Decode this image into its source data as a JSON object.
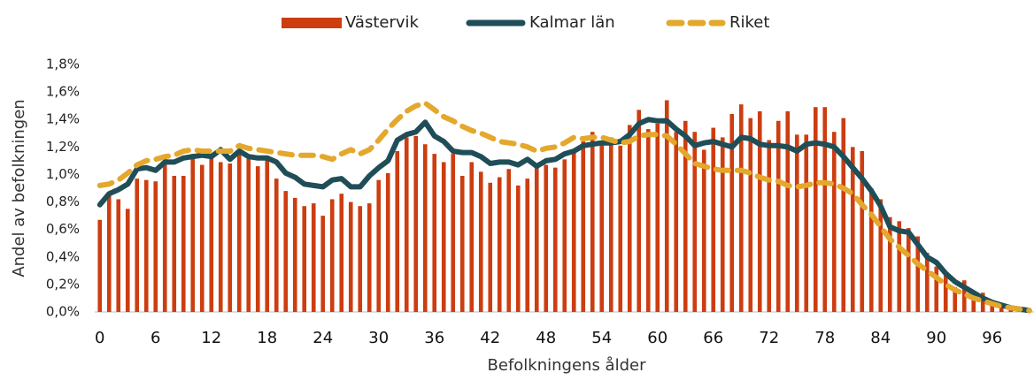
{
  "chart_data": {
    "type": "bar",
    "x_label": "Befolkningens ålder",
    "y_label": "Andel av befolkningen",
    "legend": "top",
    "grid": false,
    "categories": [
      0,
      null,
      null,
      null,
      null,
      null,
      6,
      null,
      null,
      null,
      null,
      null,
      12,
      null,
      null,
      null,
      null,
      null,
      18,
      null,
      null,
      null,
      null,
      null,
      24,
      null,
      null,
      null,
      null,
      null,
      30,
      null,
      null,
      null,
      null,
      null,
      36,
      null,
      null,
      null,
      null,
      null,
      42,
      null,
      null,
      null,
      null,
      null,
      48,
      null,
      null,
      null,
      null,
      null,
      54,
      null,
      null,
      null,
      null,
      null,
      60,
      null,
      null,
      null,
      null,
      null,
      66,
      null,
      null,
      null,
      null,
      null,
      72,
      null,
      null,
      null,
      null,
      null,
      78,
      null,
      null,
      null,
      null,
      null,
      84,
      null,
      null,
      null,
      null,
      null,
      90,
      null,
      null,
      null,
      null,
      null,
      96,
      null,
      null,
      null,
      null
    ],
    "ylim": [
      0,
      1.8
    ],
    "yticks": [
      {
        "value": 0,
        "label": "0,0%"
      },
      {
        "value": 0.2,
        "label": "0,2%"
      },
      {
        "value": 0.4,
        "label": "0,4%"
      },
      {
        "value": 0.6,
        "label": "0,6%"
      },
      {
        "value": 0.8,
        "label": "0,8%"
      },
      {
        "value": 1.0,
        "label": "1,0%"
      },
      {
        "value": 1.2,
        "label": "1,2%"
      },
      {
        "value": 1.4,
        "label": "1,4%"
      },
      {
        "value": 1.6,
        "label": "1,6%"
      },
      {
        "value": 1.8,
        "label": "1,8%"
      }
    ],
    "series": [
      {
        "name": "Västervik",
        "type": "bar",
        "color": "#cc3d10",
        "values": [
          0.67,
          0.85,
          0.82,
          0.75,
          0.97,
          0.96,
          0.95,
          1.14,
          0.99,
          0.99,
          1.15,
          1.07,
          1.12,
          1.09,
          1.08,
          1.17,
          1.12,
          1.06,
          1.12,
          0.97,
          0.88,
          0.83,
          0.77,
          0.79,
          0.7,
          0.82,
          0.86,
          0.8,
          0.77,
          0.79,
          0.96,
          1.01,
          1.17,
          1.27,
          1.28,
          1.22,
          1.15,
          1.09,
          1.15,
          0.99,
          1.09,
          1.02,
          0.94,
          0.98,
          1.04,
          0.92,
          0.97,
          1.08,
          1.07,
          1.05,
          1.11,
          1.18,
          1.24,
          1.31,
          1.22,
          1.27,
          1.21,
          1.36,
          1.47,
          1.33,
          1.37,
          1.54,
          1.31,
          1.39,
          1.31,
          1.18,
          1.34,
          1.27,
          1.44,
          1.51,
          1.41,
          1.46,
          1.25,
          1.39,
          1.46,
          1.29,
          1.29,
          1.49,
          1.49,
          1.31,
          1.41,
          1.2,
          1.17,
          0.9,
          0.82,
          0.69,
          0.66,
          0.61,
          0.55,
          0.43,
          0.33,
          0.27,
          0.18,
          0.23,
          0.12,
          0.14,
          0.05,
          0.05,
          0.03,
          0.02,
          0.01
        ]
      },
      {
        "name": "Kalmar län",
        "type": "line",
        "color": "#1f4e58",
        "values": [
          0.78,
          0.86,
          0.89,
          0.93,
          1.04,
          1.05,
          1.03,
          1.09,
          1.09,
          1.12,
          1.13,
          1.14,
          1.13,
          1.18,
          1.11,
          1.17,
          1.13,
          1.12,
          1.12,
          1.09,
          1.01,
          0.98,
          0.93,
          0.92,
          0.91,
          0.96,
          0.97,
          0.91,
          0.91,
          0.99,
          1.05,
          1.1,
          1.25,
          1.29,
          1.31,
          1.38,
          1.28,
          1.24,
          1.17,
          1.16,
          1.16,
          1.13,
          1.08,
          1.09,
          1.09,
          1.07,
          1.11,
          1.06,
          1.1,
          1.11,
          1.15,
          1.17,
          1.21,
          1.22,
          1.23,
          1.23,
          1.24,
          1.29,
          1.37,
          1.4,
          1.39,
          1.39,
          1.33,
          1.28,
          1.21,
          1.23,
          1.24,
          1.22,
          1.2,
          1.27,
          1.26,
          1.22,
          1.21,
          1.21,
          1.2,
          1.17,
          1.22,
          1.23,
          1.22,
          1.2,
          1.13,
          1.05,
          0.97,
          0.88,
          0.77,
          0.62,
          0.59,
          0.58,
          0.49,
          0.4,
          0.36,
          0.28,
          0.22,
          0.18,
          0.14,
          0.1,
          0.07,
          0.05,
          0.03,
          0.02,
          0.01
        ]
      },
      {
        "name": "Riket",
        "type": "line",
        "dashed": true,
        "color": "#e3a82c",
        "values": [
          0.92,
          0.93,
          0.96,
          1.01,
          1.07,
          1.1,
          1.11,
          1.13,
          1.14,
          1.17,
          1.18,
          1.17,
          1.17,
          1.17,
          1.17,
          1.21,
          1.19,
          1.18,
          1.17,
          1.16,
          1.15,
          1.14,
          1.14,
          1.14,
          1.13,
          1.11,
          1.15,
          1.18,
          1.15,
          1.18,
          1.25,
          1.33,
          1.4,
          1.46,
          1.5,
          1.52,
          1.47,
          1.42,
          1.39,
          1.35,
          1.32,
          1.3,
          1.27,
          1.24,
          1.23,
          1.22,
          1.2,
          1.17,
          1.19,
          1.2,
          1.23,
          1.27,
          1.26,
          1.27,
          1.27,
          1.25,
          1.23,
          1.24,
          1.28,
          1.29,
          1.29,
          1.28,
          1.22,
          1.15,
          1.08,
          1.06,
          1.04,
          1.03,
          1.03,
          1.03,
          1.01,
          0.98,
          0.96,
          0.95,
          0.92,
          0.91,
          0.92,
          0.94,
          0.94,
          0.93,
          0.9,
          0.86,
          0.78,
          0.71,
          0.62,
          0.53,
          0.47,
          0.41,
          0.35,
          0.3,
          0.25,
          0.2,
          0.16,
          0.13,
          0.1,
          0.08,
          0.06,
          0.04,
          0.03,
          0.02,
          0.01
        ]
      }
    ]
  }
}
